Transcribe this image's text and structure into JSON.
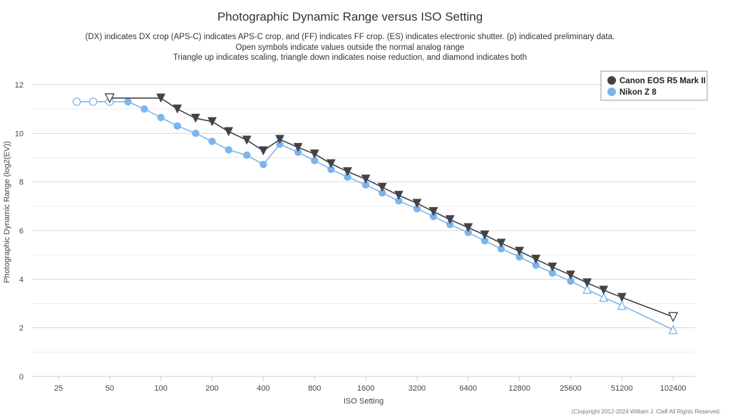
{
  "chart_data": {
    "type": "line",
    "title": "Photographic Dynamic Range versus ISO Setting",
    "subtitle_lines": [
      "(DX) indicates DX crop (APS-C) indicates APS-C crop, and (FF) indicates FF crop. (ES) indicates electronic shutter. (p) indicated preliminary data.",
      "Open symbols indicate values outside the normal analog range",
      "Triangle up indicates scaling, triangle down indicates noise reduction, and diamond indicates both"
    ],
    "xlabel": "ISO Setting",
    "ylabel": "Photographic Dynamic Range (log2(EV))",
    "x_scale": "log2",
    "x_ticks": [
      25,
      50,
      100,
      200,
      400,
      800,
      1600,
      3200,
      6400,
      12800,
      25600,
      51200,
      102400
    ],
    "ylim": [
      0,
      12
    ],
    "y_ticks": [
      0,
      2,
      4,
      6,
      8,
      10,
      12
    ],
    "grid": true,
    "legend_position": "top-right",
    "credit": "(C)opyright 2012-2024 William J. Claff All Rights Reserved.",
    "series": [
      {
        "name": "Canon EOS R5 Mark II",
        "color": "#434348",
        "marker": "triangle-down",
        "points": [
          {
            "x": 50,
            "y": 11.45,
            "open": true
          },
          {
            "x": 100,
            "y": 11.45
          },
          {
            "x": 125,
            "y": 11.0
          },
          {
            "x": 160,
            "y": 10.62
          },
          {
            "x": 200,
            "y": 10.48
          },
          {
            "x": 250,
            "y": 10.07
          },
          {
            "x": 320,
            "y": 9.72
          },
          {
            "x": 400,
            "y": 9.28
          },
          {
            "x": 500,
            "y": 9.75
          },
          {
            "x": 640,
            "y": 9.42
          },
          {
            "x": 800,
            "y": 9.15
          },
          {
            "x": 1000,
            "y": 8.75
          },
          {
            "x": 1250,
            "y": 8.42
          },
          {
            "x": 1600,
            "y": 8.12
          },
          {
            "x": 2000,
            "y": 7.78
          },
          {
            "x": 2500,
            "y": 7.45
          },
          {
            "x": 3200,
            "y": 7.12
          },
          {
            "x": 4000,
            "y": 6.78
          },
          {
            "x": 5000,
            "y": 6.45
          },
          {
            "x": 6400,
            "y": 6.12
          },
          {
            "x": 8000,
            "y": 5.82
          },
          {
            "x": 10000,
            "y": 5.48
          },
          {
            "x": 12800,
            "y": 5.15
          },
          {
            "x": 16000,
            "y": 4.82
          },
          {
            "x": 20000,
            "y": 4.5
          },
          {
            "x": 25600,
            "y": 4.17
          },
          {
            "x": 32000,
            "y": 3.85
          },
          {
            "x": 40000,
            "y": 3.55
          },
          {
            "x": 51200,
            "y": 3.25
          },
          {
            "x": 102400,
            "y": 2.45,
            "open": true
          }
        ]
      },
      {
        "name": "Nikon Z 8",
        "color": "#7cb5ec",
        "marker": "circle",
        "points": [
          {
            "x": 32,
            "y": 11.3,
            "open": true
          },
          {
            "x": 40,
            "y": 11.3,
            "open": true
          },
          {
            "x": 50,
            "y": 11.3,
            "open": true
          },
          {
            "x": 64,
            "y": 11.3
          },
          {
            "x": 80,
            "y": 11.0
          },
          {
            "x": 100,
            "y": 10.65
          },
          {
            "x": 125,
            "y": 10.3
          },
          {
            "x": 160,
            "y": 10.0
          },
          {
            "x": 200,
            "y": 9.67
          },
          {
            "x": 250,
            "y": 9.32
          },
          {
            "x": 320,
            "y": 9.1
          },
          {
            "x": 400,
            "y": 8.72
          },
          {
            "x": 500,
            "y": 9.55
          },
          {
            "x": 640,
            "y": 9.22
          },
          {
            "x": 800,
            "y": 8.88
          },
          {
            "x": 1000,
            "y": 8.52
          },
          {
            "x": 1250,
            "y": 8.2
          },
          {
            "x": 1600,
            "y": 7.88
          },
          {
            "x": 2000,
            "y": 7.55
          },
          {
            "x": 2500,
            "y": 7.22
          },
          {
            "x": 3200,
            "y": 6.9
          },
          {
            "x": 4000,
            "y": 6.58
          },
          {
            "x": 5000,
            "y": 6.25
          },
          {
            "x": 6400,
            "y": 5.92
          },
          {
            "x": 8000,
            "y": 5.58
          },
          {
            "x": 10000,
            "y": 5.25
          },
          {
            "x": 12800,
            "y": 4.92
          },
          {
            "x": 16000,
            "y": 4.58
          },
          {
            "x": 20000,
            "y": 4.25
          },
          {
            "x": 25600,
            "y": 3.92
          },
          {
            "x": 32000,
            "y": 3.58,
            "open": true,
            "marker": "triangle-up"
          },
          {
            "x": 40000,
            "y": 3.25,
            "open": true,
            "marker": "triangle-up"
          },
          {
            "x": 51200,
            "y": 2.92,
            "open": true,
            "marker": "triangle-up"
          },
          {
            "x": 102400,
            "y": 1.92,
            "open": true,
            "marker": "triangle-up"
          }
        ]
      }
    ]
  }
}
